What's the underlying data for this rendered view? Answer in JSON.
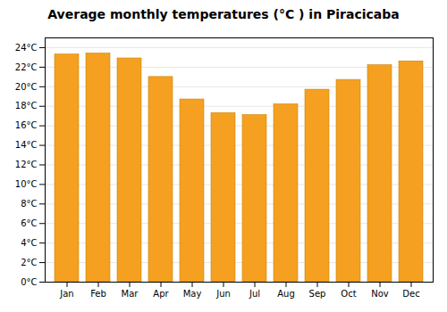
{
  "chart_data": {
    "type": "bar",
    "title": "Average monthly temperatures (°C ) in Piracicaba",
    "categories": [
      "Jan",
      "Feb",
      "Mar",
      "Apr",
      "May",
      "Jun",
      "Jul",
      "Aug",
      "Sep",
      "Oct",
      "Nov",
      "Dec"
    ],
    "values": [
      23.3,
      23.4,
      22.9,
      21.0,
      18.7,
      17.3,
      17.1,
      18.2,
      19.7,
      20.7,
      22.2,
      22.6
    ],
    "color": "#F5A020",
    "ylim": [
      0,
      25
    ],
    "yticks": [
      {
        "value": 0,
        "label": "0°C"
      },
      {
        "value": 2,
        "label": "2°C"
      },
      {
        "value": 4,
        "label": "4°C"
      },
      {
        "value": 6,
        "label": "6°C"
      },
      {
        "value": 8,
        "label": "8°C"
      },
      {
        "value": 10,
        "label": "10°C"
      },
      {
        "value": 12,
        "label": "12°C"
      },
      {
        "value": 14,
        "label": "14°C"
      },
      {
        "value": 16,
        "label": "16°C"
      },
      {
        "value": 18,
        "label": "18°C"
      },
      {
        "value": 20,
        "label": "20°C"
      },
      {
        "value": 22,
        "label": "22°C"
      },
      {
        "value": 24,
        "label": "24°C"
      }
    ],
    "grid": true
  }
}
